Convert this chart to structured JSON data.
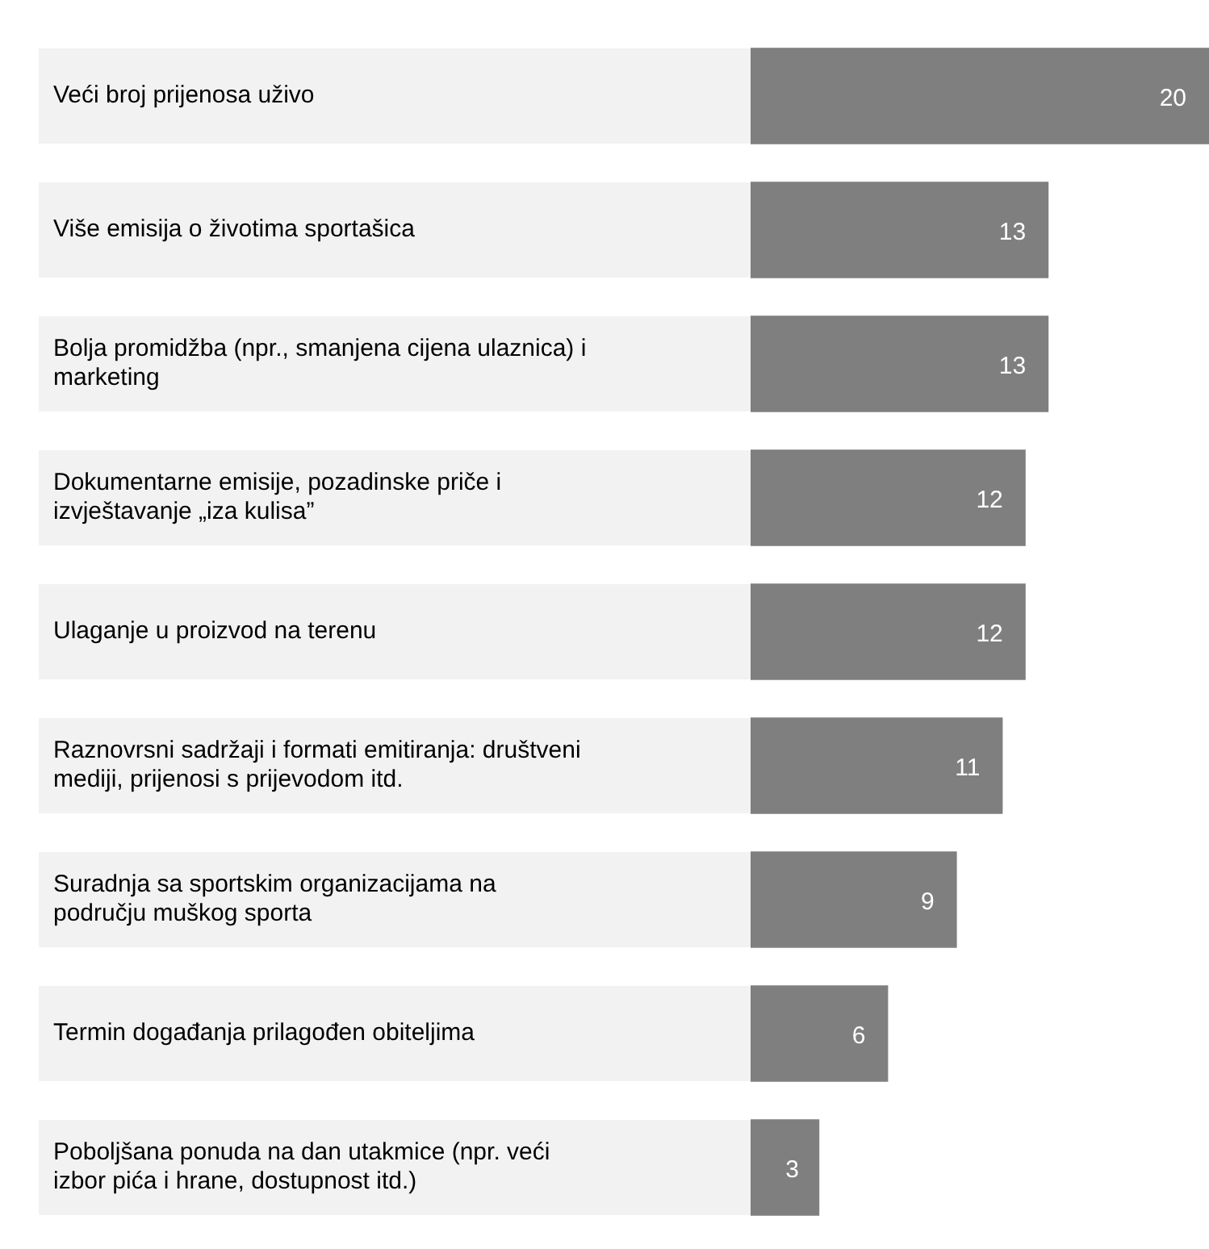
{
  "chart_data": {
    "type": "bar",
    "orientation": "horizontal",
    "categories": [
      "Veći broj prijenosa uživo",
      "Više emisija o životima sportašica",
      "Bolja promidžba (npr., smanjena cijena ulaznica) i marketing",
      "Dokumentarne emisije, pozadinske priče i izvještavanje „iza kulisa”",
      "Ulaganje u proizvod na terenu",
      "Raznovrsni sadržaji i formati emitiranja: društveni mediji, prijenosi s prijevodom itd.",
      "Suradnja sa sportskim organizacijama na području muškog sporta",
      "Termin događanja prilagođen obiteljima",
      "Poboljšana ponuda na dan utakmice (npr. veći izbor pića i hrane, dostupnost itd.)"
    ],
    "values": [
      20,
      13,
      13,
      12,
      12,
      11,
      9,
      6,
      3
    ],
    "color": "#7f7f7f",
    "data_labels": true
  }
}
